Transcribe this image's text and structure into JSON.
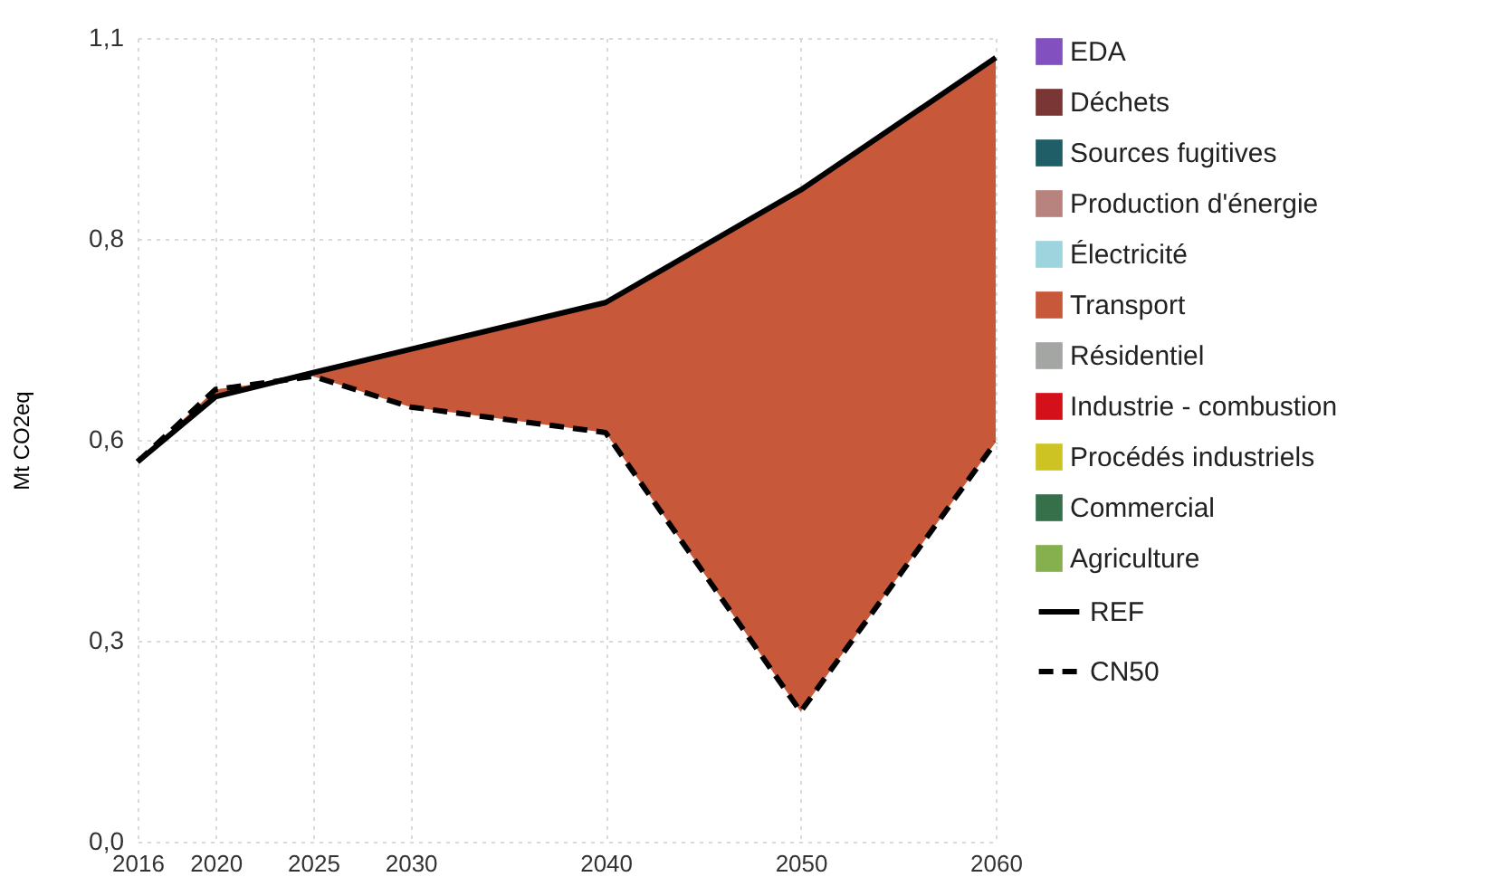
{
  "chart_data": {
    "type": "line",
    "ylabel": "Mt CO2eq",
    "x": [
      2016,
      2020,
      2025,
      2030,
      2040,
      2050,
      2060
    ],
    "xlim": [
      2016,
      2060
    ],
    "xticks": [
      2016,
      2020,
      2025,
      2030,
      2040,
      2050,
      2060
    ],
    "ylim": [
      0,
      1.1
    ],
    "yticks": [
      {
        "value": 0,
        "label": "0,0"
      },
      {
        "value": 0.275,
        "label": "0,3"
      },
      {
        "value": 0.55,
        "label": "0,6"
      },
      {
        "value": 0.825,
        "label": "0,8"
      },
      {
        "value": 1.1,
        "label": "1,1"
      }
    ],
    "grid": true,
    "legend": "right",
    "series": [
      {
        "name": "EDA",
        "type": "area",
        "color": "#8350c0",
        "values": [
          null,
          null,
          null,
          null,
          null,
          null,
          null
        ]
      },
      {
        "name": "Déchets",
        "type": "area",
        "color": "#7a3535",
        "values": [
          null,
          null,
          null,
          null,
          null,
          null,
          null
        ]
      },
      {
        "name": "Sources fugitives",
        "type": "area",
        "color": "#1f5e66",
        "values": [
          null,
          null,
          null,
          null,
          null,
          null,
          null
        ]
      },
      {
        "name": "Production d'énergie",
        "type": "area",
        "color": "#b8837e",
        "values": [
          null,
          null,
          null,
          null,
          null,
          null,
          null
        ]
      },
      {
        "name": "Électricité",
        "type": "area",
        "color": "#9dd4de",
        "values": [
          null,
          null,
          null,
          null,
          null,
          null,
          null
        ]
      },
      {
        "name": "Transport",
        "type": "area",
        "color": "#c8583a",
        "values": [
          null,
          null,
          null,
          null,
          null,
          null,
          null
        ],
        "lower": [
          0.52,
          0.619,
          0.637,
          0.595,
          0.56,
          0.178,
          0.547
        ],
        "upper": [
          0.52,
          0.609,
          0.642,
          0.674,
          0.738,
          0.892,
          1.073
        ]
      },
      {
        "name": "Résidentiel",
        "type": "area",
        "color": "#a3a6a3",
        "values": [
          null,
          null,
          null,
          null,
          null,
          null,
          null
        ]
      },
      {
        "name": "Industrie - combustion",
        "type": "area",
        "color": "#d4111a",
        "values": [
          null,
          null,
          null,
          null,
          null,
          null,
          null
        ]
      },
      {
        "name": "Procédés industriels",
        "type": "area",
        "color": "#cdc424",
        "values": [
          null,
          null,
          null,
          null,
          null,
          null,
          null
        ]
      },
      {
        "name": "Commercial",
        "type": "area",
        "color": "#36704a",
        "values": [
          null,
          null,
          null,
          null,
          null,
          null,
          null
        ]
      },
      {
        "name": "Agriculture",
        "type": "area",
        "color": "#86b04e",
        "values": [
          null,
          null,
          null,
          null,
          null,
          null,
          null
        ]
      },
      {
        "name": "REF",
        "color": "#000000",
        "line_style": "solid",
        "values": [
          0.52,
          0.609,
          0.642,
          0.674,
          0.738,
          0.892,
          1.073
        ]
      },
      {
        "name": "CN50",
        "color": "#000000",
        "line_style": "dashed",
        "values": [
          0.52,
          0.619,
          0.637,
          0.595,
          0.56,
          0.178,
          0.547
        ]
      }
    ]
  }
}
